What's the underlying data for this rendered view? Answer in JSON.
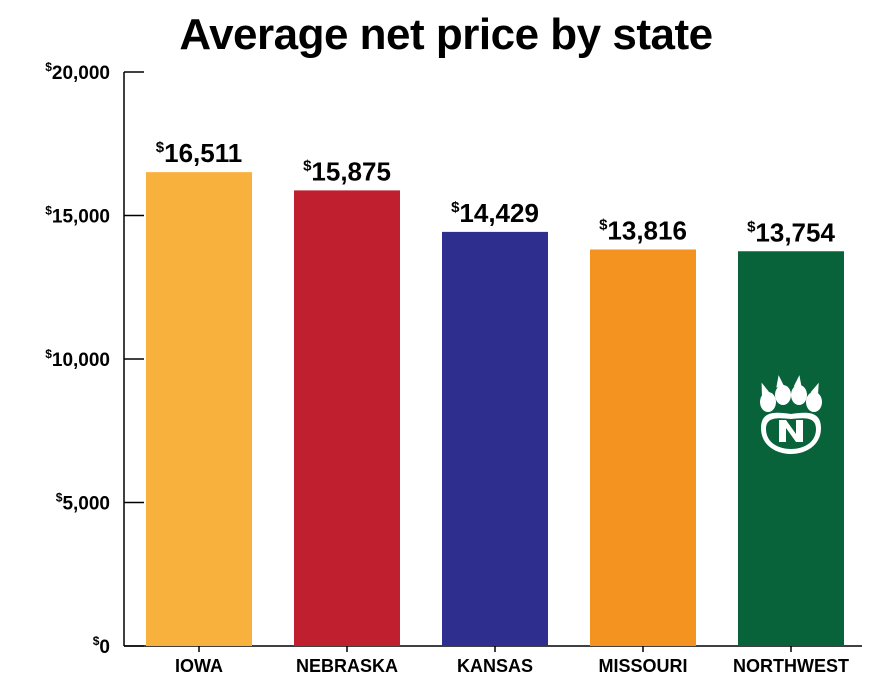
{
  "chart_data": {
    "type": "bar",
    "title": "Average net price by state",
    "xlabel": "",
    "ylabel": "",
    "currency_symbol": "$",
    "categories": [
      "IOWA",
      "NEBRASKA",
      "KANSAS",
      "MISSOURI",
      "NORTHWEST"
    ],
    "values": [
      16511,
      15875,
      14429,
      13816,
      13754
    ],
    "value_labels": [
      "16,511",
      "15,875",
      "14,429",
      "13,816",
      "13,754"
    ],
    "ylim": [
      0,
      20000
    ],
    "yticks": [
      0,
      5000,
      10000,
      15000,
      20000
    ],
    "ytick_labels": [
      "0",
      "5,000",
      "10,000",
      "15,000",
      "20,000"
    ],
    "colors": [
      "#F9B13E",
      "#BF1F2F",
      "#2E2E8F",
      "#F4931F",
      "#08623A"
    ],
    "grid": false,
    "legend": "none",
    "logo_icon": "paw-logo-icon"
  }
}
